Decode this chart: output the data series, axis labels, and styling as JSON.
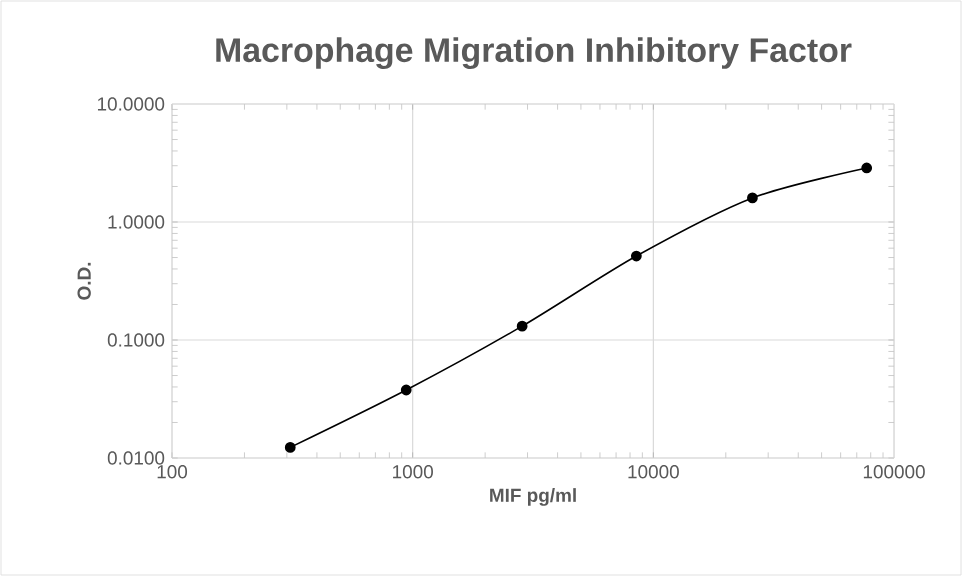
{
  "chart_data": {
    "type": "line",
    "title": "Macrophage  Migration  Inhibitory Factor",
    "xlabel": "MIF pg/ml",
    "ylabel": "O.D.",
    "x": [
      310,
      940,
      2850,
      8500,
      25800,
      77000
    ],
    "series": [
      {
        "color": "#000000",
        "values": [
          0.0123,
          0.0377,
          0.131,
          0.515,
          1.6,
          2.87
        ]
      }
    ],
    "log": "xy",
    "xlim": [
      100,
      100000
    ],
    "ylim": [
      0.01,
      10
    ],
    "xticks": [
      100,
      1000,
      10000,
      100000
    ],
    "yticks": [
      {
        "value": 0.01,
        "label": "0.0100"
      },
      {
        "value": 0.1,
        "label": "0.1000"
      },
      {
        "value": 1,
        "label": "1.0000"
      },
      {
        "value": 10,
        "label": "10.0000"
      }
    ],
    "grid": true,
    "marker": "circle",
    "line_style": "solid"
  }
}
